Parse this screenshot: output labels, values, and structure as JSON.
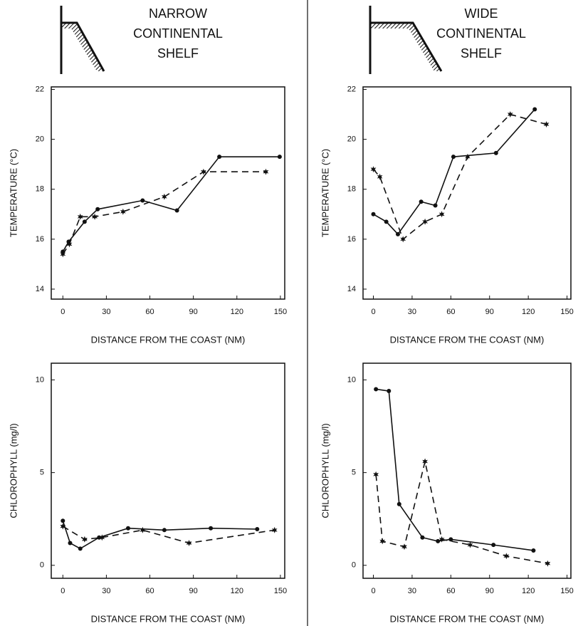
{
  "headers": [
    [
      "NARROW",
      "CONTINENTAL",
      "SHELF"
    ],
    [
      "WIDE",
      "CONTINENTAL",
      "SHELF"
    ]
  ],
  "chart_data": [
    {
      "type": "line",
      "xlabel": "DISTANCE FROM THE COAST (NM)",
      "ylabel": "TEMPERATURE (°C)",
      "xlim": [
        -8,
        153
      ],
      "ylim": [
        13.6,
        22.1
      ],
      "xticks": [
        0,
        30,
        60,
        90,
        120,
        150
      ],
      "yticks": [
        14,
        16,
        18,
        20,
        22
      ],
      "series": [
        {
          "color": "#111",
          "line_style": "solid",
          "marker": "dot",
          "x": [
            0,
            4,
            15,
            24,
            55,
            78.7,
            107.9,
            149.5
          ],
          "values": [
            15.5,
            15.9,
            16.7,
            17.2,
            17.55,
            17.15,
            19.3,
            19.3
          ]
        },
        {
          "color": "#111",
          "line_style": "dashed",
          "marker": "star",
          "x": [
            0,
            4.5,
            12,
            22,
            41.5,
            70,
            97,
            140
          ],
          "values": [
            15.4,
            15.8,
            16.9,
            16.9,
            17.1,
            17.7,
            18.7,
            18.7
          ]
        }
      ]
    },
    {
      "type": "line",
      "xlabel": "DISTANCE FROM THE COAST (NM)",
      "ylabel": "TEMPERATURE (°C)",
      "xlim": [
        -8,
        153
      ],
      "ylim": [
        13.6,
        22.1
      ],
      "xticks": [
        0,
        30,
        60,
        90,
        120,
        150
      ],
      "yticks": [
        14,
        16,
        18,
        20,
        22
      ],
      "series": [
        {
          "color": "#111",
          "line_style": "solid",
          "marker": "dot",
          "x": [
            0,
            10,
            19,
            37,
            48,
            62,
            95,
            125
          ],
          "values": [
            17.0,
            16.7,
            16.2,
            17.5,
            17.35,
            19.3,
            19.45,
            21.2
          ]
        },
        {
          "color": "#111",
          "line_style": "dashed",
          "marker": "star",
          "x": [
            0,
            5,
            23,
            40,
            53,
            73,
            106,
            134
          ],
          "values": [
            18.8,
            18.5,
            16.0,
            16.7,
            17.0,
            19.3,
            21.0,
            20.6
          ]
        }
      ]
    },
    {
      "type": "line",
      "xlabel": "DISTANCE FROM THE COAST (NM)",
      "ylabel": "CHLOROPHYLL (mg/l)",
      "xlim": [
        -8,
        153
      ],
      "ylim": [
        -0.7,
        10.9
      ],
      "xticks": [
        0,
        30,
        60,
        90,
        120,
        150
      ],
      "yticks": [
        0,
        5,
        10
      ],
      "series": [
        {
          "color": "#111",
          "line_style": "solid",
          "marker": "dot",
          "x": [
            0,
            5,
            12,
            25,
            45,
            70,
            102,
            134
          ],
          "values": [
            2.4,
            1.2,
            0.9,
            1.5,
            2.0,
            1.9,
            2.0,
            1.95
          ]
        },
        {
          "color": "#111",
          "line_style": "dashed",
          "marker": "star",
          "x": [
            0,
            15,
            27,
            55,
            87,
            146
          ],
          "values": [
            2.1,
            1.4,
            1.5,
            1.9,
            1.2,
            1.9
          ]
        }
      ]
    },
    {
      "type": "line",
      "xlabel": "DISTANCE FROM THE COAST (NM)",
      "ylabel": "CHLOROPHYLL (mg/l)",
      "xlim": [
        -8,
        153
      ],
      "ylim": [
        -0.7,
        10.9
      ],
      "xticks": [
        0,
        30,
        60,
        90,
        120,
        150
      ],
      "yticks": [
        0,
        5,
        10
      ],
      "series": [
        {
          "color": "#111",
          "line_style": "solid",
          "marker": "dot",
          "x": [
            2,
            12,
            20,
            38,
            50,
            60,
            93,
            124
          ],
          "values": [
            9.5,
            9.4,
            3.3,
            1.5,
            1.3,
            1.4,
            1.1,
            0.8
          ]
        },
        {
          "color": "#111",
          "line_style": "dashed",
          "marker": "star",
          "x": [
            2,
            7,
            24,
            40,
            53,
            75,
            103,
            135
          ],
          "values": [
            4.9,
            1.3,
            1.0,
            5.6,
            1.4,
            1.1,
            0.5,
            0.1
          ]
        }
      ]
    }
  ]
}
